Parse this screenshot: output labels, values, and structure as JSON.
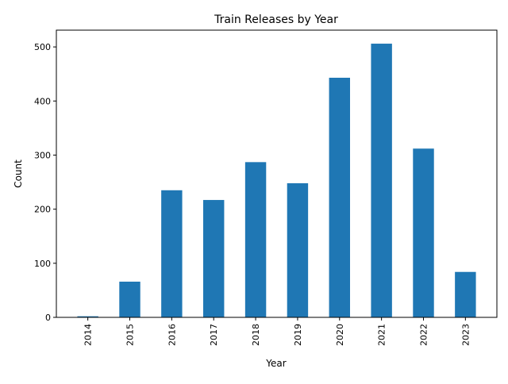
{
  "chart_data": {
    "type": "bar",
    "title": "Train Releases by Year",
    "xlabel": "Year",
    "ylabel": "Count",
    "categories": [
      "2014",
      "2015",
      "2016",
      "2017",
      "2018",
      "2019",
      "2020",
      "2021",
      "2022",
      "2023"
    ],
    "values": [
      2,
      66,
      235,
      217,
      287,
      248,
      443,
      506,
      312,
      84
    ],
    "ylim": [
      0,
      531
    ],
    "yticks": [
      "0",
      "100",
      "200",
      "300",
      "400",
      "500"
    ],
    "grid": false,
    "legend": "none",
    "bar_color": "#1f77b4"
  }
}
